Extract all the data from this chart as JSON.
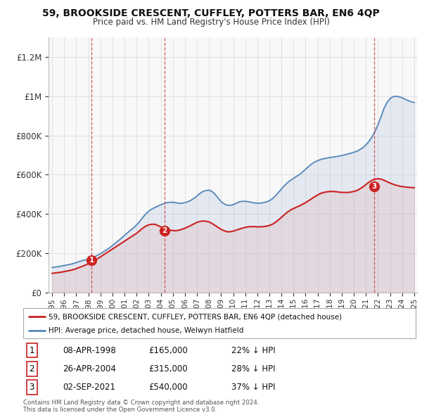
{
  "title": "59, BROOKSIDE CRESCENT, CUFFLEY, POTTERS BAR, EN6 4QP",
  "subtitle": "Price paid vs. HM Land Registry's House Price Index (HPI)",
  "ylabel_ticks": [
    "£0",
    "£200K",
    "£400K",
    "£600K",
    "£800K",
    "£1M",
    "£1.2M"
  ],
  "ytick_values": [
    0,
    200000,
    400000,
    600000,
    800000,
    1000000,
    1200000
  ],
  "ylim": [
    0,
    1300000
  ],
  "xlim_start": 1994.7,
  "xlim_end": 2025.3,
  "hpi_color": "#5588bb",
  "hpi_fill_color": "#aabbdd",
  "price_color": "#cc2222",
  "price_fill_color": "#ddaaaa",
  "marker_color": "#cc2222",
  "vline_color": "#cc3333",
  "grid_color": "#dddddd",
  "bg_color": "#f8f8f8",
  "legend_label_price": "59, BROOKSIDE CRESCENT, CUFFLEY, POTTERS BAR, EN6 4QP (detached house)",
  "legend_label_hpi": "HPI: Average price, detached house, Welwyn Hatfield",
  "transactions": [
    {
      "num": 1,
      "date": "08-APR-1998",
      "year": 1998.28,
      "price": 165000,
      "pct": "22%",
      "direction": "↓"
    },
    {
      "num": 2,
      "date": "26-APR-2004",
      "year": 2004.32,
      "price": 315000,
      "pct": "28%",
      "direction": "↓"
    },
    {
      "num": 3,
      "date": "02-SEP-2021",
      "year": 2021.67,
      "price": 540000,
      "pct": "37%",
      "direction": "↓"
    }
  ],
  "copyright_text": "Contains HM Land Registry data © Crown copyright and database right 2024.\nThis data is licensed under the Open Government Licence v3.0.",
  "hpi_data_x": [
    1995.0,
    1995.25,
    1995.5,
    1995.75,
    1996.0,
    1996.25,
    1996.5,
    1996.75,
    1997.0,
    1997.25,
    1997.5,
    1997.75,
    1998.0,
    1998.25,
    1998.5,
    1998.75,
    1999.0,
    1999.25,
    1999.5,
    1999.75,
    2000.0,
    2000.25,
    2000.5,
    2000.75,
    2001.0,
    2001.25,
    2001.5,
    2001.75,
    2002.0,
    2002.25,
    2002.5,
    2002.75,
    2003.0,
    2003.25,
    2003.5,
    2003.75,
    2004.0,
    2004.25,
    2004.5,
    2004.75,
    2005.0,
    2005.25,
    2005.5,
    2005.75,
    2006.0,
    2006.25,
    2006.5,
    2006.75,
    2007.0,
    2007.25,
    2007.5,
    2007.75,
    2008.0,
    2008.25,
    2008.5,
    2008.75,
    2009.0,
    2009.25,
    2009.5,
    2009.75,
    2010.0,
    2010.25,
    2010.5,
    2010.75,
    2011.0,
    2011.25,
    2011.5,
    2011.75,
    2012.0,
    2012.25,
    2012.5,
    2012.75,
    2013.0,
    2013.25,
    2013.5,
    2013.75,
    2014.0,
    2014.25,
    2014.5,
    2014.75,
    2015.0,
    2015.25,
    2015.5,
    2015.75,
    2016.0,
    2016.25,
    2016.5,
    2016.75,
    2017.0,
    2017.25,
    2017.5,
    2017.75,
    2018.0,
    2018.25,
    2018.5,
    2018.75,
    2019.0,
    2019.25,
    2019.5,
    2019.75,
    2020.0,
    2020.25,
    2020.5,
    2020.75,
    2021.0,
    2021.25,
    2021.5,
    2021.75,
    2022.0,
    2022.25,
    2022.5,
    2022.75,
    2023.0,
    2023.25,
    2023.5,
    2023.75,
    2024.0,
    2024.25,
    2024.5,
    2024.75,
    2025.0
  ],
  "hpi_data_y": [
    128000,
    130000,
    132000,
    135000,
    138000,
    141000,
    144000,
    148000,
    153000,
    158000,
    163000,
    166000,
    170000,
    175000,
    182000,
    190000,
    198000,
    208000,
    218000,
    228000,
    240000,
    252000,
    265000,
    278000,
    292000,
    305000,
    318000,
    330000,
    345000,
    362000,
    382000,
    400000,
    415000,
    425000,
    433000,
    440000,
    447000,
    453000,
    458000,
    460000,
    460000,
    458000,
    455000,
    455000,
    458000,
    463000,
    470000,
    480000,
    492000,
    505000,
    515000,
    520000,
    522000,
    515000,
    500000,
    482000,
    463000,
    452000,
    445000,
    445000,
    448000,
    455000,
    462000,
    465000,
    465000,
    463000,
    460000,
    457000,
    455000,
    455000,
    458000,
    462000,
    468000,
    478000,
    492000,
    510000,
    528000,
    545000,
    560000,
    572000,
    582000,
    592000,
    602000,
    615000,
    628000,
    642000,
    655000,
    665000,
    672000,
    678000,
    682000,
    685000,
    688000,
    690000,
    692000,
    695000,
    698000,
    702000,
    706000,
    710000,
    715000,
    720000,
    728000,
    738000,
    752000,
    770000,
    792000,
    820000,
    855000,
    895000,
    938000,
    968000,
    988000,
    998000,
    1000000,
    998000,
    992000,
    985000,
    978000,
    972000,
    968000
  ],
  "price_data_x": [
    1995.0,
    1995.25,
    1995.5,
    1995.75,
    1996.0,
    1996.25,
    1996.5,
    1996.75,
    1997.0,
    1997.25,
    1997.5,
    1997.75,
    1998.0,
    1998.25,
    1998.5,
    1998.75,
    1999.0,
    1999.25,
    1999.5,
    1999.75,
    2000.0,
    2000.25,
    2000.5,
    2000.75,
    2001.0,
    2001.25,
    2001.5,
    2001.75,
    2002.0,
    2002.25,
    2002.5,
    2002.75,
    2003.0,
    2003.25,
    2003.5,
    2003.75,
    2004.0,
    2004.25,
    2004.5,
    2004.75,
    2005.0,
    2005.25,
    2005.5,
    2005.75,
    2006.0,
    2006.25,
    2006.5,
    2006.75,
    2007.0,
    2007.25,
    2007.5,
    2007.75,
    2008.0,
    2008.25,
    2008.5,
    2008.75,
    2009.0,
    2009.25,
    2009.5,
    2009.75,
    2010.0,
    2010.25,
    2010.5,
    2010.75,
    2011.0,
    2011.25,
    2011.5,
    2011.75,
    2012.0,
    2012.25,
    2012.5,
    2012.75,
    2013.0,
    2013.25,
    2013.5,
    2013.75,
    2014.0,
    2014.25,
    2014.5,
    2014.75,
    2015.0,
    2015.25,
    2015.5,
    2015.75,
    2016.0,
    2016.25,
    2016.5,
    2016.75,
    2017.0,
    2017.25,
    2017.5,
    2017.75,
    2018.0,
    2018.25,
    2018.5,
    2018.75,
    2019.0,
    2019.25,
    2019.5,
    2019.75,
    2020.0,
    2020.25,
    2020.5,
    2020.75,
    2021.0,
    2021.25,
    2021.5,
    2021.75,
    2022.0,
    2022.25,
    2022.5,
    2022.75,
    2023.0,
    2023.25,
    2023.5,
    2023.75,
    2024.0,
    2024.25,
    2024.5,
    2024.75,
    2025.0
  ],
  "price_data_y": [
    98000,
    100000,
    102000,
    104000,
    107000,
    110000,
    113000,
    117000,
    122000,
    128000,
    134000,
    140000,
    147000,
    155000,
    163000,
    172000,
    182000,
    192000,
    202000,
    212000,
    222000,
    232000,
    242000,
    252000,
    262000,
    272000,
    282000,
    292000,
    302000,
    315000,
    328000,
    338000,
    345000,
    348000,
    348000,
    342000,
    335000,
    328000,
    322000,
    318000,
    316000,
    315000,
    318000,
    322000,
    328000,
    335000,
    342000,
    350000,
    358000,
    362000,
    365000,
    363000,
    360000,
    352000,
    342000,
    332000,
    322000,
    315000,
    310000,
    310000,
    313000,
    318000,
    323000,
    328000,
    332000,
    335000,
    336000,
    336000,
    335000,
    335000,
    336000,
    338000,
    342000,
    348000,
    358000,
    370000,
    383000,
    397000,
    410000,
    420000,
    428000,
    435000,
    442000,
    450000,
    458000,
    468000,
    478000,
    488000,
    497000,
    505000,
    510000,
    513000,
    515000,
    515000,
    514000,
    512000,
    510000,
    510000,
    510000,
    512000,
    515000,
    520000,
    528000,
    538000,
    550000,
    562000,
    572000,
    578000,
    580000,
    578000,
    572000,
    565000,
    558000,
    552000,
    547000,
    543000,
    540000,
    538000,
    536000,
    535000,
    534000
  ]
}
